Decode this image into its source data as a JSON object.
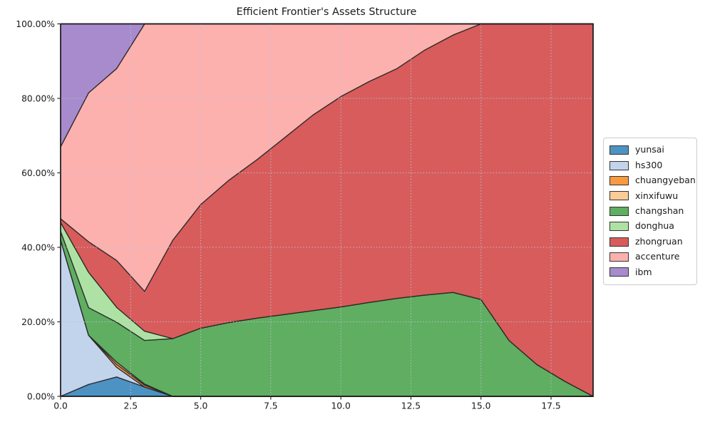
{
  "title": "Efficient Frontier's Assets Structure",
  "chart_data": {
    "type": "area",
    "stacked": true,
    "title": "Efficient Frontier's Assets Structure",
    "xlabel": "",
    "ylabel": "",
    "xlim": [
      0,
      19
    ],
    "ylim": [
      0,
      100
    ],
    "grid": "dotted",
    "grid_color": "#b6c7d6",
    "edge_color": "#262626",
    "legend_position": "right",
    "x": [
      0,
      1,
      2,
      3,
      4,
      5,
      6,
      7,
      8,
      9,
      10,
      11,
      12,
      13,
      14,
      15,
      16,
      17,
      18,
      19
    ],
    "x_tick_values": [
      0,
      2.5,
      5,
      7.5,
      10,
      12.5,
      15,
      17.5
    ],
    "x_tick_labels": [
      "0.0",
      "2.5",
      "5.0",
      "7.5",
      "10.0",
      "12.5",
      "15.0",
      "17.5"
    ],
    "y_tick_values": [
      0,
      20,
      40,
      60,
      80,
      100
    ],
    "y_tick_labels": [
      "0.00%",
      "20.00%",
      "40.00%",
      "60.00%",
      "80.00%",
      "100.00%"
    ],
    "series": [
      {
        "name": "yunsai",
        "color": "#4C93C4",
        "values": [
          0,
          3.2,
          5.2,
          2.5,
          0,
          0,
          0,
          0,
          0,
          0,
          0,
          0,
          0,
          0,
          0,
          0,
          0,
          0,
          0,
          0
        ]
      },
      {
        "name": "hs300",
        "color": "#C2D3EC",
        "values": [
          42,
          13.2,
          2.6,
          0,
          0,
          0,
          0,
          0,
          0,
          0,
          0,
          0,
          0,
          0,
          0,
          0,
          0,
          0,
          0,
          0
        ]
      },
      {
        "name": "chuangyeban",
        "color": "#FA9A40",
        "values": [
          0,
          0,
          0.8,
          0.5,
          0,
          0,
          0,
          0,
          0,
          0,
          0,
          0,
          0,
          0,
          0,
          0,
          0,
          0,
          0,
          0
        ]
      },
      {
        "name": "xinxifuwu",
        "color": "#FCCB97",
        "values": [
          0,
          0,
          0.6,
          0.3,
          0,
          0,
          0,
          0,
          0,
          0,
          0,
          0,
          0,
          0,
          0,
          0,
          0,
          0,
          0,
          0
        ]
      },
      {
        "name": "changshan",
        "color": "#60AE61",
        "values": [
          2.3,
          7.4,
          10.7,
          11.7,
          15.5,
          18.3,
          19.8,
          21,
          22,
          23,
          24,
          25.2,
          26.3,
          27.2,
          27.9,
          26,
          15,
          8.5,
          4,
          0
        ]
      },
      {
        "name": "donghua",
        "color": "#AEE2A4",
        "values": [
          2.4,
          9.5,
          4,
          2.5,
          0,
          0,
          0,
          0,
          0,
          0,
          0,
          0,
          0,
          0,
          0,
          0,
          0,
          0,
          0,
          0
        ]
      },
      {
        "name": "zhongruan",
        "color": "#D85C5B",
        "values": [
          1,
          8.2,
          12.6,
          10.7,
          26.4,
          33.2,
          38.2,
          42.5,
          47.5,
          52.5,
          56.5,
          59.3,
          61.7,
          65.8,
          69.1,
          74,
          85,
          91.5,
          96,
          100
        ]
      },
      {
        "name": "accenture",
        "color": "#FCB1AF",
        "values": [
          19.3,
          40,
          51.5,
          71.8,
          58.1,
          48.5,
          42,
          36.5,
          30.5,
          24.5,
          19.5,
          15.5,
          12,
          7,
          3,
          0,
          0,
          0,
          0,
          0
        ]
      },
      {
        "name": "ibm",
        "color": "#A78BCD",
        "values": [
          33,
          18.5,
          12,
          0,
          0,
          0,
          0,
          0,
          0,
          0,
          0,
          0,
          0,
          0,
          0,
          0,
          0,
          0,
          0,
          0
        ]
      }
    ]
  }
}
